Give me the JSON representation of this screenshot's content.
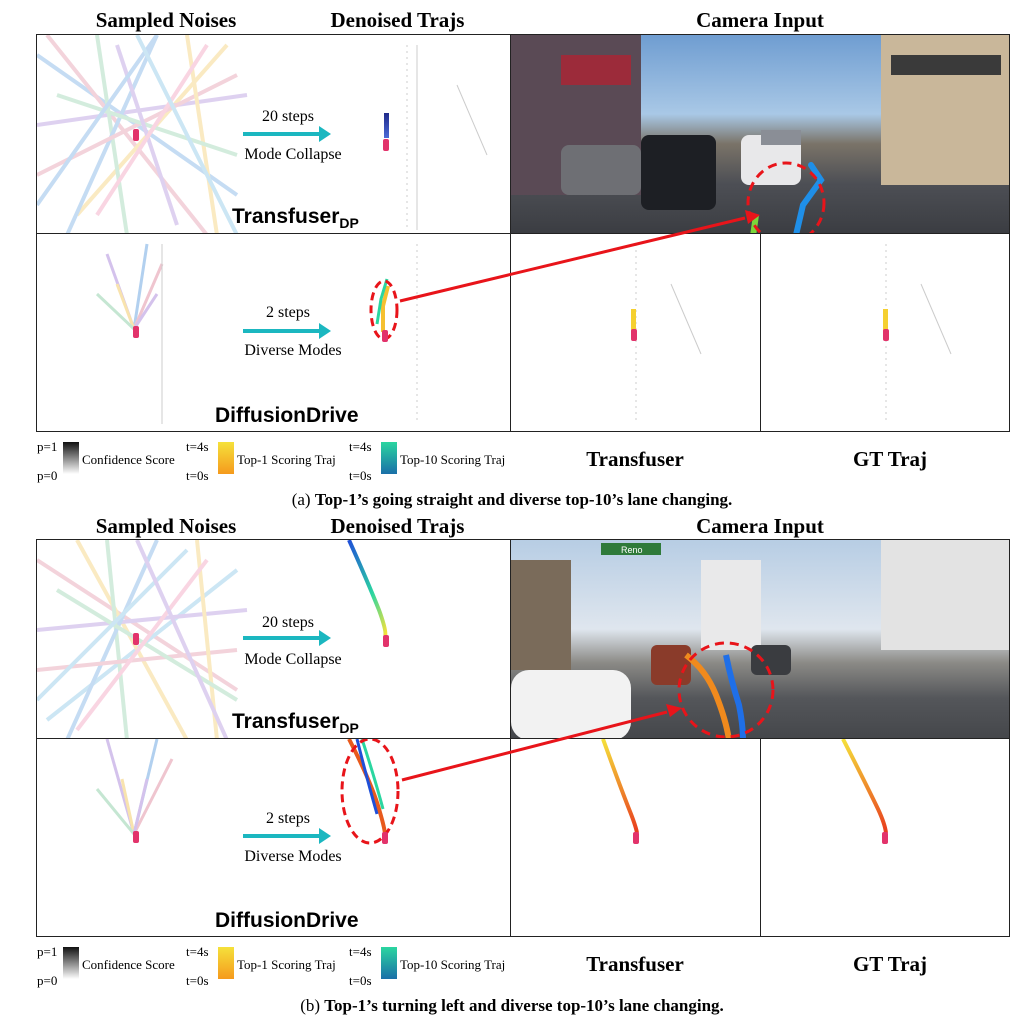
{
  "sections": [
    {
      "headers": {
        "noises": "Sampled Noises",
        "denoised": "Denoised Trajs",
        "camera": "Camera Input"
      },
      "rows": [
        {
          "method_main": "Transfuser",
          "method_sub": "DP",
          "steps": "20 steps",
          "mode": "Mode Collapse"
        },
        {
          "method_main": "DiffusionDrive",
          "method_sub": "",
          "steps": "2 steps",
          "mode": "Diverse Modes"
        }
      ],
      "legend": {
        "p_high": "p=1",
        "p_low": "p=0",
        "confidence": "Confidence Score",
        "t_end": "t=4s",
        "t_start": "t=0s",
        "top1": "Top-1 Scoring Traj",
        "t_end2": "t=4s",
        "t_start2": "t=0s",
        "top10": "Top-10 Scoring Traj"
      },
      "bottom_labels": {
        "transfuser": "Transfuser",
        "gt": "GT Traj"
      },
      "caption_prefix": "(a)",
      "caption_text": "Top-1’s going straight and diverse top-10’s lane changing."
    },
    {
      "headers": {
        "noises": "Sampled Noises",
        "denoised": "Denoised Trajs",
        "camera": "Camera Input"
      },
      "rows": [
        {
          "method_main": "Transfuser",
          "method_sub": "DP",
          "steps": "20 steps",
          "mode": "Mode Collapse"
        },
        {
          "method_main": "DiffusionDrive",
          "method_sub": "",
          "steps": "2 steps",
          "mode": "Diverse Modes"
        }
      ],
      "legend": {
        "p_high": "p=1",
        "p_low": "p=0",
        "confidence": "Confidence Score",
        "t_end": "t=4s",
        "t_start": "t=0s",
        "top1": "Top-1 Scoring Traj",
        "t_end2": "t=4s",
        "t_start2": "t=0s",
        "top10": "Top-10 Scoring Traj"
      },
      "bottom_labels": {
        "transfuser": "Transfuser",
        "gt": "GT Traj"
      },
      "caption_prefix": "(b)",
      "caption_text": "Top-1’s turning left and diverse top-10’s lane changing.",
      "street_sign": "Reno"
    }
  ],
  "colors": {
    "arrow_teal": "#1bb7c0",
    "red_arrow": "#e8141a",
    "ego_car": "#e2336b",
    "top1_start": "#f5e13b",
    "top1_end": "#e83a1d",
    "top10_start": "#2bd6a0",
    "top10_end": "#1f4fd8"
  }
}
